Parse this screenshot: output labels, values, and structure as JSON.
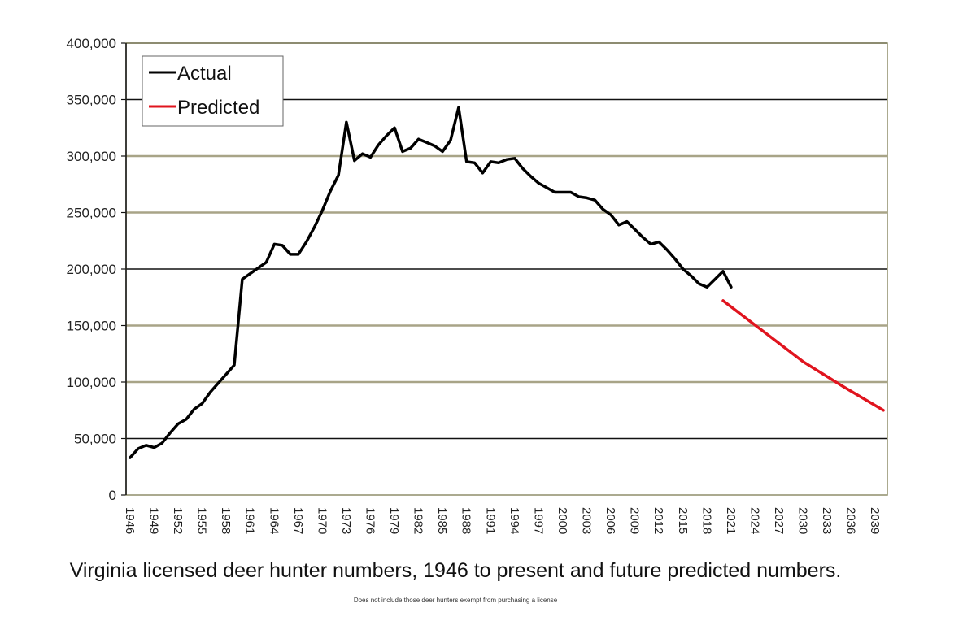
{
  "chart_data": {
    "type": "line",
    "title": "Virginia licensed deer hunter numbers, 1946 to present and future predicted numbers.",
    "footnote": "Does not include those deer hunters exempt from purchasing a license",
    "xlabel": "",
    "ylabel": "",
    "ylim": [
      0,
      400000
    ],
    "yticks": [
      "0",
      "50,000",
      "100,000",
      "150,000",
      "200,000",
      "250,000",
      "300,000",
      "350,000",
      "400,000"
    ],
    "xlim": [
      1946,
      2040
    ],
    "xticks": [
      "1946",
      "1949",
      "1952",
      "1955",
      "1958",
      "1961",
      "1964",
      "1967",
      "1970",
      "1973",
      "1976",
      "1979",
      "1982",
      "1985",
      "1988",
      "1991",
      "1994",
      "1997",
      "2000",
      "2003",
      "2006",
      "2009",
      "2012",
      "2015",
      "2018",
      "2021",
      "2024",
      "2027",
      "2030",
      "2033",
      "2036",
      "2039"
    ],
    "grid": true,
    "legend": "top-left",
    "series": [
      {
        "name": "Actual",
        "color": "#000000",
        "x": [
          1946,
          1947,
          1948,
          1949,
          1950,
          1951,
          1952,
          1953,
          1954,
          1955,
          1956,
          1957,
          1958,
          1959,
          1960,
          1961,
          1962,
          1963,
          1964,
          1965,
          1966,
          1967,
          1968,
          1969,
          1970,
          1971,
          1972,
          1973,
          1974,
          1975,
          1976,
          1977,
          1978,
          1979,
          1980,
          1981,
          1982,
          1983,
          1984,
          1985,
          1986,
          1987,
          1988,
          1989,
          1990,
          1991,
          1992,
          1993,
          1994,
          1995,
          1996,
          1997,
          1998,
          1999,
          2000,
          2001,
          2002,
          2003,
          2004,
          2005,
          2006,
          2007,
          2008,
          2009,
          2010,
          2011,
          2012,
          2013,
          2014,
          2015,
          2016,
          2017,
          2018,
          2019,
          2020,
          2021
        ],
        "values": [
          33000,
          41000,
          44000,
          42000,
          46000,
          55000,
          63000,
          67000,
          76000,
          81000,
          91000,
          99000,
          107000,
          115000,
          191000,
          196000,
          201000,
          206000,
          222000,
          221000,
          213000,
          213000,
          224000,
          237000,
          252000,
          269000,
          283000,
          330000,
          296000,
          302000,
          299000,
          310000,
          318000,
          325000,
          304000,
          307000,
          315000,
          312000,
          309000,
          304000,
          314000,
          343000,
          295000,
          294000,
          285000,
          295000,
          294000,
          297000,
          298000,
          289000,
          282000,
          276000,
          272000,
          268000,
          268000,
          268000,
          264000,
          263000,
          261000,
          253000,
          248000,
          239000,
          242000,
          235000,
          228000,
          222000,
          224000,
          217000,
          209000,
          200000,
          194000,
          187000,
          184000,
          191000,
          198000,
          184000
        ]
      },
      {
        "name": "Predicted",
        "color": "#e0141e",
        "x": [
          2020,
          2025,
          2030,
          2035,
          2040
        ],
        "values": [
          172000,
          145000,
          118000,
          96000,
          75000
        ]
      }
    ]
  }
}
